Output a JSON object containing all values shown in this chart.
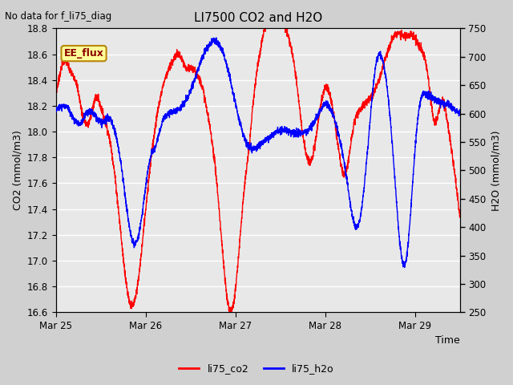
{
  "title": "LI7500 CO2 and H2O",
  "top_left_text": "No data for f_li75_diag",
  "xlabel": "Time",
  "ylabel_left": "CO2 (mmol/m3)",
  "ylabel_right": "H2O (mmol/m3)",
  "ylim_left": [
    16.6,
    18.8
  ],
  "ylim_right": [
    250,
    750
  ],
  "yticks_left": [
    16.6,
    16.8,
    17.0,
    17.2,
    17.4,
    17.6,
    17.8,
    18.0,
    18.2,
    18.4,
    18.6,
    18.8
  ],
  "yticks_right": [
    250,
    300,
    350,
    400,
    450,
    500,
    550,
    600,
    650,
    700,
    750
  ],
  "xtick_labels": [
    "Mar 25",
    "Mar 26",
    "Mar 27",
    "Mar 28",
    "Mar 29"
  ],
  "legend_labels": [
    "li75_co2",
    "li75_h2o"
  ],
  "legend_colors": [
    "red",
    "blue"
  ],
  "co2_color": "red",
  "h2o_color": "blue",
  "plot_bg_color": "#e8e8e8",
  "fig_bg_color": "#d0d0d0",
  "grid_color": "white",
  "ee_flux_text": "EE_flux",
  "ee_flux_bg": "#ffff99",
  "ee_flux_border": "#b8860b",
  "linewidth": 1.0,
  "noise_co2": 0.015,
  "noise_h2o": 3.0
}
